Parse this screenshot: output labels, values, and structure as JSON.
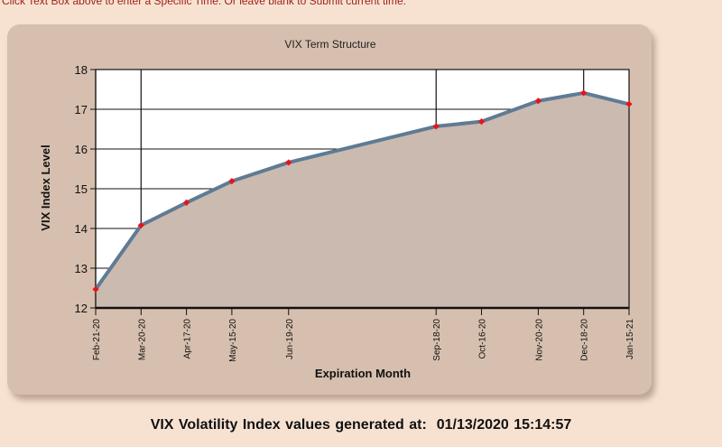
{
  "page": {
    "note": "Click Text Box above to enter a Specific Time. Or leave blank to Submit current time.",
    "footer_label": "VIX Volatility Index values generated at:",
    "footer_timestamp": "01/13/2020 15:14:57"
  },
  "chart_data": {
    "type": "area",
    "title": "VIX Term Structure",
    "xlabel": "Expiration Month",
    "ylabel": "VIX Index Level",
    "ylim": [
      12,
      18
    ],
    "yticks": [
      12,
      13,
      14,
      15,
      16,
      17,
      18
    ],
    "x": [
      "2020-02-21",
      "2020-03-20",
      "2020-04-17",
      "2020-05-15",
      "2020-06-19",
      "2020-09-18",
      "2020-10-16",
      "2020-11-20",
      "2020-12-18",
      "2021-01-15"
    ],
    "x_labels": [
      "Feb-21-20",
      "Mar-20-20",
      "Apr-17-20",
      "May-15-20",
      "Jun-19-20",
      "Sep-18-20",
      "Oct-16-20",
      "Nov-20-20",
      "Dec-18-20",
      "Jan-15-21"
    ],
    "values": [
      12.47,
      14.08,
      14.65,
      15.19,
      15.66,
      16.57,
      16.69,
      17.21,
      17.41,
      17.13
    ],
    "grid": true,
    "colors": {
      "line": "#5f7b94",
      "marker": "#e8141a",
      "fill": "#cbbab0",
      "plot_bg": "#ffffff"
    }
  }
}
